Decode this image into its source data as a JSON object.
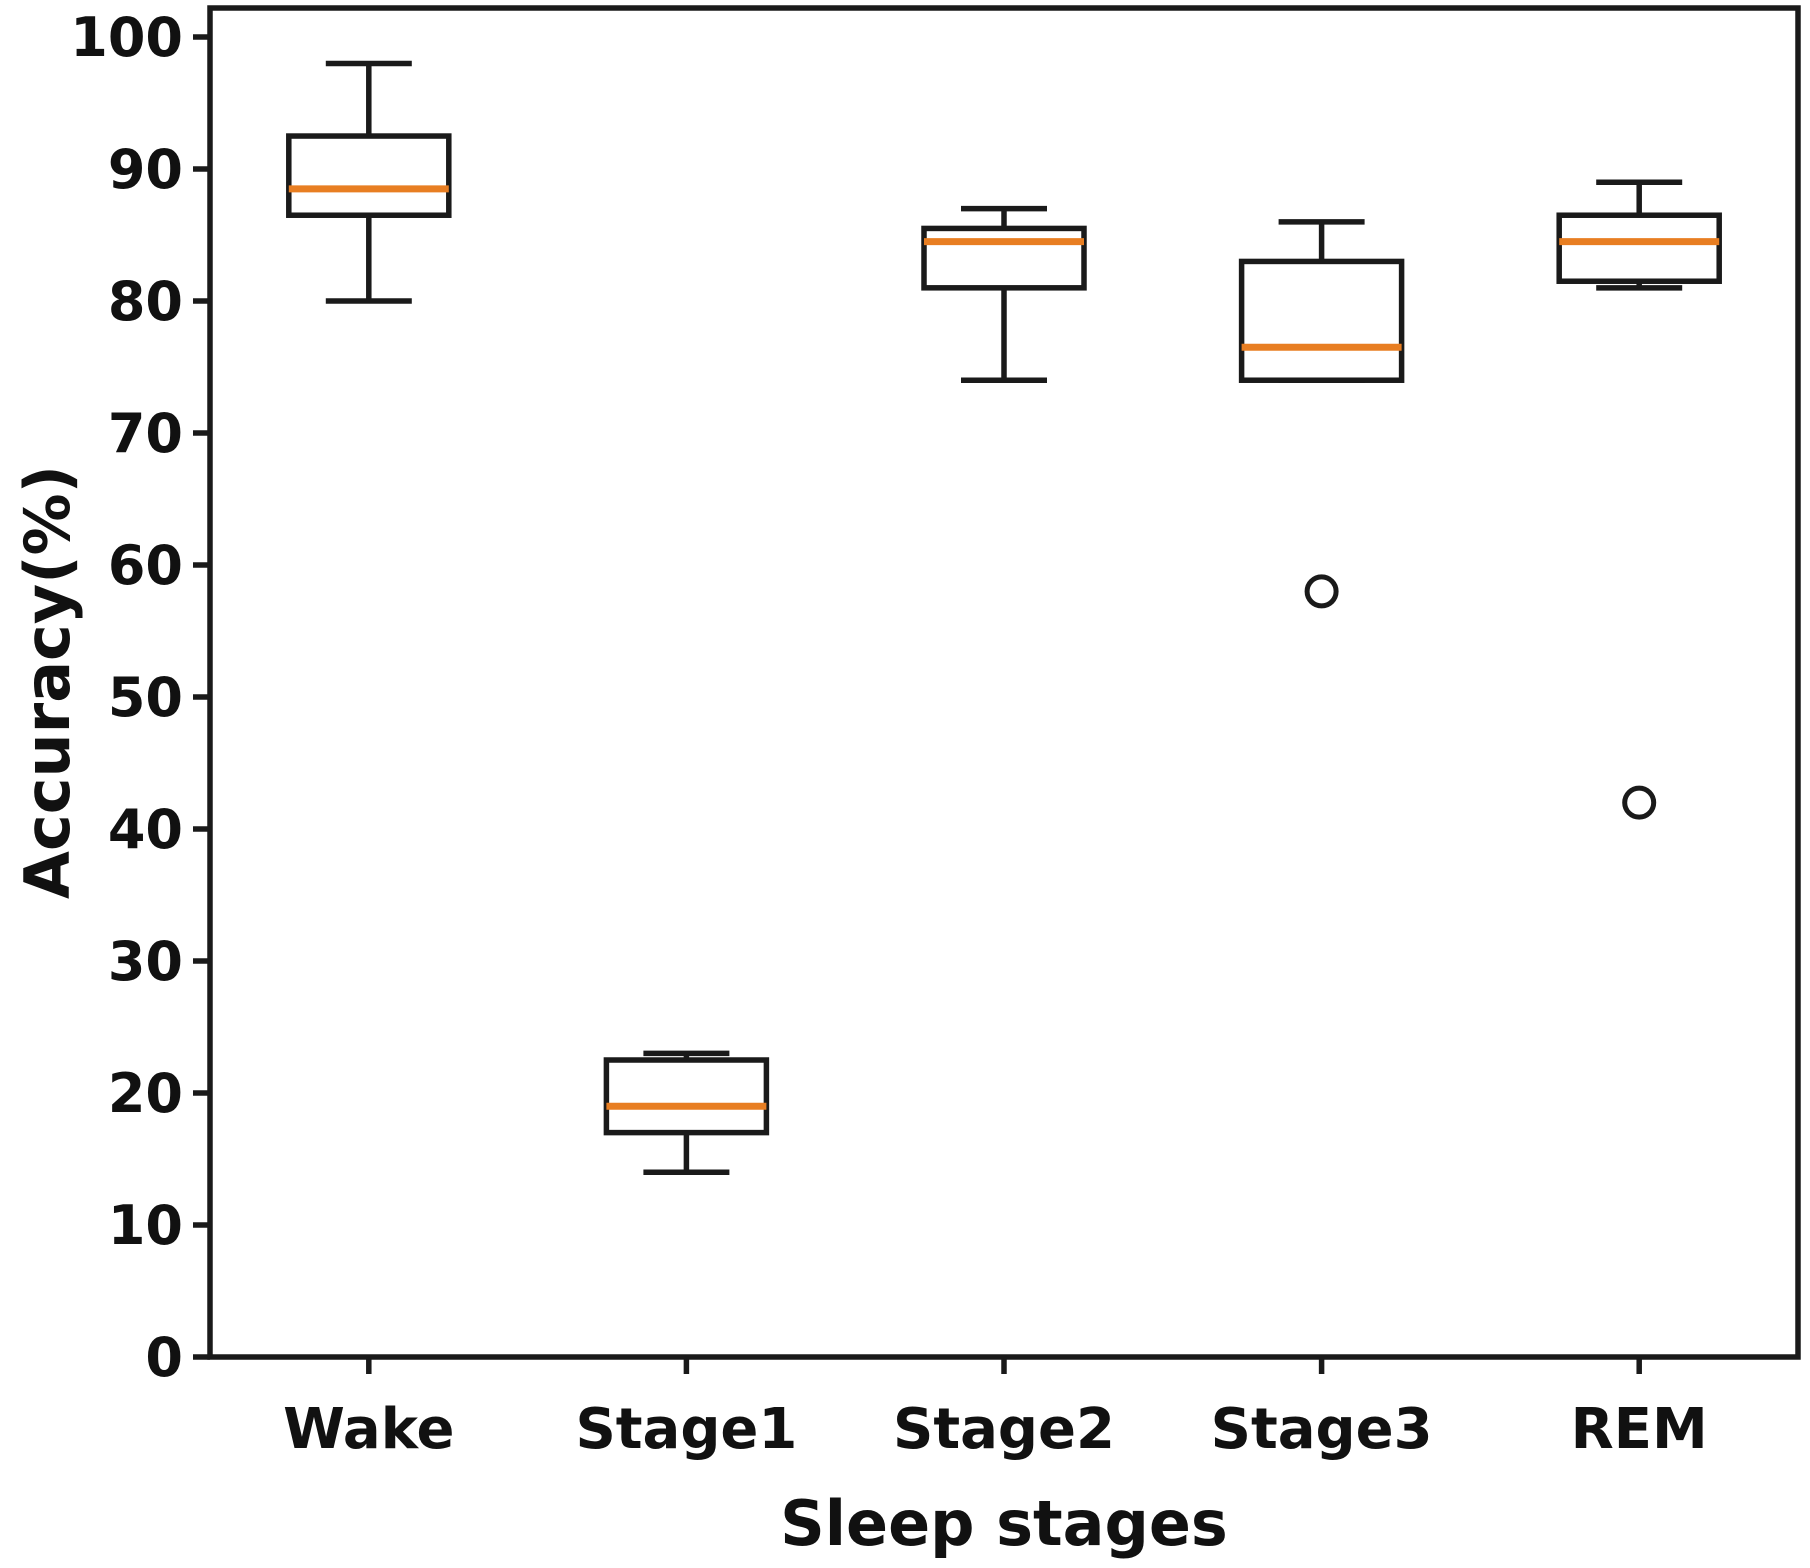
{
  "chart_data": {
    "type": "box",
    "title": "",
    "xlabel": "Sleep stages",
    "ylabel": "Accuracy(%)",
    "categories": [
      "Wake",
      "Stage1",
      "Stage2",
      "Stage3",
      "REM"
    ],
    "yticks": [
      0,
      10,
      20,
      30,
      40,
      50,
      60,
      70,
      80,
      90,
      100
    ],
    "ylim": [
      0,
      102.2
    ],
    "grid": false,
    "legend": "none",
    "series": [
      {
        "name": "Wake",
        "low": 80,
        "q1": 86.5,
        "median": 88.5,
        "q3": 92.5,
        "high": 98,
        "outliers": []
      },
      {
        "name": "Stage1",
        "low": 14,
        "q1": 17,
        "median": 19,
        "q3": 22.5,
        "high": 23,
        "outliers": []
      },
      {
        "name": "Stage2",
        "low": 74,
        "q1": 81,
        "median": 84.5,
        "q3": 85.5,
        "high": 87,
        "outliers": []
      },
      {
        "name": "Stage3",
        "low": 74,
        "q1": 74,
        "median": 76.5,
        "q3": 83,
        "high": 86,
        "outliers": [
          58
        ]
      },
      {
        "name": "REM",
        "low": 81,
        "q1": 81.5,
        "median": 84.5,
        "q3": 86.5,
        "high": 89,
        "outliers": [
          42
        ]
      }
    ],
    "colors": {
      "box_edge": "#1a1a1a",
      "median": "#e87e22",
      "text": "#111111",
      "background": "#ffffff"
    }
  }
}
